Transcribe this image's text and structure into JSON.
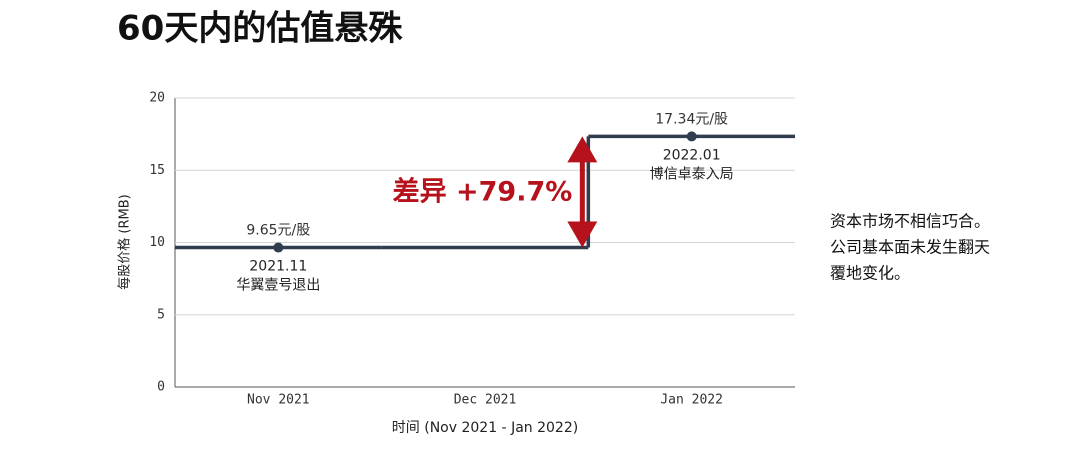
{
  "chart_data": {
    "type": "line",
    "title": "60天内的估值悬殊",
    "ylabel": "每股价格 (RMB)",
    "xlabel": "时间 (Nov 2021 - Jan 2022)",
    "categories": [
      "Nov 2021",
      "Dec 2021",
      "Jan 2022"
    ],
    "series": [
      {
        "color": "#2f3d4f",
        "values": [
          9.65,
          9.65,
          17.34
        ],
        "value_labels": [
          "9.65元/股",
          null,
          "17.34元/股"
        ],
        "point_notes": [
          [
            "2021.11",
            "华翼壹号退出"
          ],
          null,
          [
            "2022.01",
            "博信卓泰入局"
          ]
        ]
      }
    ],
    "step": "mid",
    "difference_label": "差异 +79.7%",
    "difference_color": "#b5121b",
    "ylim": [
      0,
      20
    ],
    "yticks": [
      0,
      5,
      10,
      15,
      20
    ],
    "grid": true,
    "side_note": [
      "资本市场不相信巧合。",
      "公司基本面未发生翻天",
      "覆地变化。"
    ]
  }
}
